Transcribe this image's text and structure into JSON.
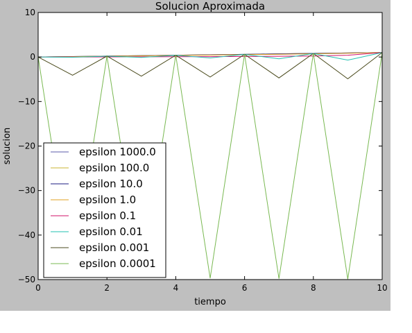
{
  "chart_data": {
    "type": "line",
    "title": "Solucion Aproximada",
    "xlabel": "tiempo",
    "ylabel": "solucion",
    "xlim": [
      0,
      10
    ],
    "ylim": [
      -50,
      10
    ],
    "xticks": [
      0,
      2,
      4,
      6,
      8,
      10
    ],
    "yticks": [
      10,
      0,
      -10,
      -20,
      -30,
      -40,
      -50
    ],
    "x": [
      0,
      1,
      2,
      3,
      4,
      5,
      6,
      7,
      8,
      9,
      10
    ],
    "legend_position": "lower-left",
    "grid": false,
    "series": [
      {
        "name": "epsilon 1000.0",
        "color": "#5a5aa8",
        "values": [
          0,
          0.1,
          0.2,
          0.3,
          0.4,
          0.5,
          0.6,
          0.7,
          0.8,
          0.9,
          1.0
        ]
      },
      {
        "name": "epsilon 100.0",
        "color": "#c8b432",
        "values": [
          0,
          0.1,
          0.2,
          0.3,
          0.4,
          0.5,
          0.6,
          0.7,
          0.8,
          0.9,
          1.0
        ]
      },
      {
        "name": "epsilon 10.0",
        "color": "#1a1a80",
        "values": [
          0,
          0.1,
          0.2,
          0.3,
          0.4,
          0.5,
          0.6,
          0.7,
          0.8,
          0.9,
          1.0
        ]
      },
      {
        "name": "epsilon 1.0",
        "color": "#e0a020",
        "values": [
          0,
          0.08,
          0.17,
          0.26,
          0.35,
          0.44,
          0.53,
          0.62,
          0.72,
          0.84,
          1.0
        ]
      },
      {
        "name": "epsilon 0.1",
        "color": "#d0106a",
        "values": [
          0,
          0.0,
          0.02,
          0.04,
          0.06,
          0.08,
          0.12,
          0.16,
          0.22,
          0.4,
          1.0
        ]
      },
      {
        "name": "epsilon 0.01",
        "color": "#20c0b0",
        "values": [
          0,
          -0.05,
          0.18,
          -0.1,
          0.38,
          -0.2,
          0.58,
          -0.4,
          0.78,
          -0.7,
          1.0
        ]
      },
      {
        "name": "epsilon 0.001",
        "color": "#4a4a1c",
        "values": [
          0,
          -4.1,
          0.2,
          -4.3,
          0.4,
          -4.5,
          0.6,
          -4.7,
          0.8,
          -4.9,
          1.0
        ]
      },
      {
        "name": "epsilon 0.0001",
        "color": "#78b850",
        "values": [
          0,
          -49.5,
          0.2,
          -49.6,
          0.4,
          -49.7,
          0.6,
          -49.8,
          0.8,
          -49.9,
          1.0
        ]
      }
    ]
  }
}
